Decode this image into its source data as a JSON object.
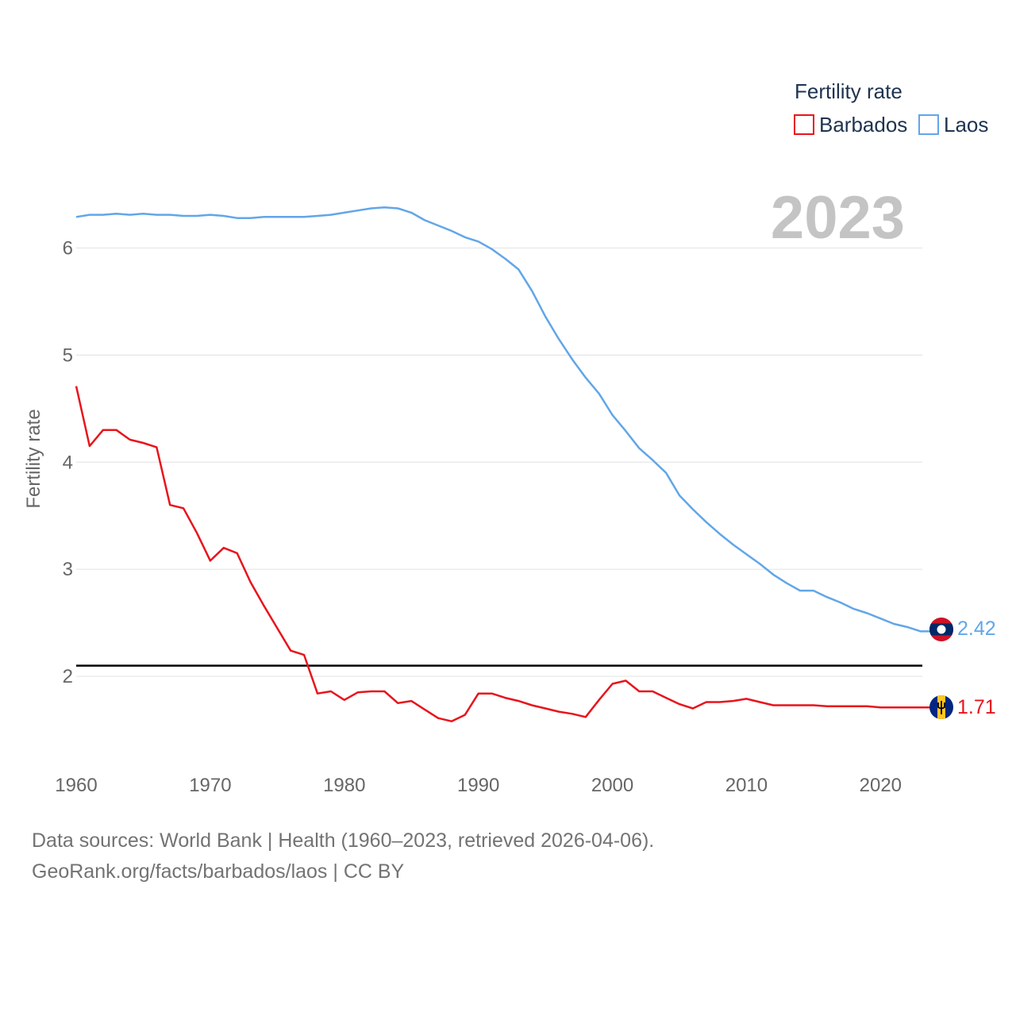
{
  "chart_data": {
    "type": "line",
    "title": "Fertility rate",
    "ylabel": "Fertility rate",
    "xlabel": "",
    "current_year_label": "2023",
    "xlim": [
      1960,
      2023
    ],
    "ylim": [
      1.2,
      6.7
    ],
    "x_ticks": [
      1960,
      1970,
      1980,
      1990,
      2000,
      2010,
      2020
    ],
    "y_ticks": [
      2,
      3,
      4,
      5,
      6
    ],
    "reference_line": {
      "value": 2.1,
      "color": "#000000"
    },
    "grid": true,
    "legend_position": "top-right",
    "x": [
      1960,
      1961,
      1962,
      1963,
      1964,
      1965,
      1966,
      1967,
      1968,
      1969,
      1970,
      1971,
      1972,
      1973,
      1974,
      1975,
      1976,
      1977,
      1978,
      1979,
      1980,
      1981,
      1982,
      1983,
      1984,
      1985,
      1986,
      1987,
      1988,
      1989,
      1990,
      1991,
      1992,
      1993,
      1994,
      1995,
      1996,
      1997,
      1998,
      1999,
      2000,
      2001,
      2002,
      2003,
      2004,
      2005,
      2006,
      2007,
      2008,
      2009,
      2010,
      2011,
      2012,
      2013,
      2014,
      2015,
      2016,
      2017,
      2018,
      2019,
      2020,
      2021,
      2022,
      2023
    ],
    "series": [
      {
        "name": "Barbados",
        "color": "#e8141c",
        "end_label": "1.71",
        "flag": "barbados-flag",
        "values": [
          4.71,
          4.15,
          4.3,
          4.3,
          4.21,
          4.18,
          4.14,
          3.6,
          3.57,
          3.34,
          3.08,
          3.2,
          3.15,
          2.88,
          2.66,
          2.45,
          2.24,
          2.2,
          1.84,
          1.86,
          1.78,
          1.85,
          1.86,
          1.86,
          1.75,
          1.77,
          1.69,
          1.61,
          1.58,
          1.64,
          1.84,
          1.84,
          1.8,
          1.77,
          1.73,
          1.7,
          1.67,
          1.65,
          1.62,
          1.78,
          1.93,
          1.96,
          1.86,
          1.86,
          1.8,
          1.74,
          1.7,
          1.76,
          1.76,
          1.77,
          1.79,
          1.76,
          1.73,
          1.73,
          1.73,
          1.73,
          1.72,
          1.72,
          1.72,
          1.72,
          1.71,
          1.71,
          1.71,
          1.71
        ]
      },
      {
        "name": "Laos",
        "color": "#62a6e8",
        "end_label": "2.42",
        "flag": "laos-flag",
        "values": [
          6.29,
          6.31,
          6.31,
          6.32,
          6.31,
          6.32,
          6.31,
          6.31,
          6.3,
          6.3,
          6.31,
          6.3,
          6.28,
          6.28,
          6.29,
          6.29,
          6.29,
          6.29,
          6.3,
          6.31,
          6.33,
          6.35,
          6.37,
          6.38,
          6.37,
          6.33,
          6.26,
          6.21,
          6.16,
          6.1,
          6.06,
          5.99,
          5.9,
          5.8,
          5.6,
          5.36,
          5.15,
          4.96,
          4.79,
          4.64,
          4.44,
          4.29,
          4.13,
          4.02,
          3.9,
          3.69,
          3.56,
          3.44,
          3.33,
          3.23,
          3.14,
          3.05,
          2.95,
          2.87,
          2.8,
          2.8,
          2.74,
          2.69,
          2.63,
          2.59,
          2.54,
          2.49,
          2.46,
          2.42
        ]
      }
    ]
  },
  "footer": {
    "line1": "Data sources: World Bank | Health (1960–2023, retrieved 2026-04-06).",
    "line2": "GeoRank.org/facts/barbados/laos | CC BY"
  }
}
